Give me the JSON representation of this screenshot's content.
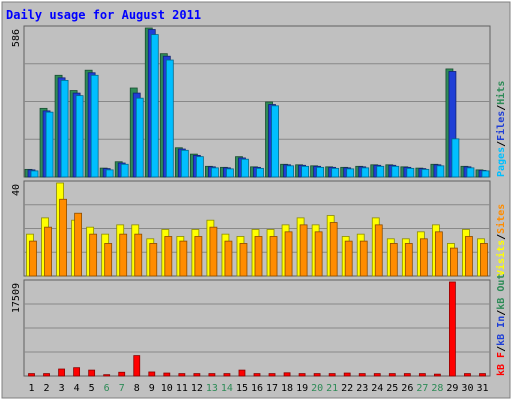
{
  "chart_data": [
    {
      "type": "bar",
      "title": "Daily usage for August 2011",
      "panel": "top",
      "ymax_label": "586",
      "ylim": [
        0,
        586
      ],
      "grid": true,
      "categories": [
        "1",
        "2",
        "3",
        "4",
        "5",
        "6",
        "7",
        "8",
        "9",
        "10",
        "11",
        "12",
        "13",
        "14",
        "15",
        "16",
        "17",
        "18",
        "19",
        "20",
        "21",
        "22",
        "23",
        "24",
        "25",
        "26",
        "27",
        "28",
        "29",
        "30",
        "31"
      ],
      "series": [
        {
          "name": "Hits",
          "color": "#2e8b57",
          "values": [
            30,
            270,
            400,
            340,
            420,
            35,
            60,
            350,
            586,
            485,
            115,
            90,
            42,
            38,
            80,
            40,
            295,
            50,
            48,
            44,
            40,
            38,
            42,
            48,
            48,
            40,
            35,
            50,
            425,
            42,
            28
          ]
        },
        {
          "name": "Files",
          "color": "#1f3fd6",
          "values": [
            28,
            260,
            390,
            330,
            410,
            33,
            55,
            330,
            580,
            475,
            110,
            85,
            40,
            36,
            75,
            38,
            285,
            48,
            46,
            42,
            38,
            36,
            40,
            46,
            46,
            38,
            33,
            48,
            415,
            40,
            26
          ]
        },
        {
          "name": "Pages",
          "color": "#00bfff",
          "values": [
            24,
            255,
            380,
            320,
            400,
            28,
            50,
            310,
            560,
            460,
            105,
            80,
            36,
            32,
            70,
            34,
            280,
            44,
            42,
            38,
            34,
            32,
            36,
            42,
            42,
            34,
            30,
            44,
            150,
            36,
            24
          ]
        }
      ],
      "legend_order": [
        "Pages",
        "Files",
        "Hits"
      ]
    },
    {
      "type": "bar",
      "panel": "middle",
      "ymax_label": "40",
      "ylim": [
        0,
        40
      ],
      "grid": true,
      "series": [
        {
          "name": "Visits",
          "color": "#ffff00",
          "values": [
            18,
            25,
            40,
            24,
            21,
            18,
            22,
            22,
            16,
            20,
            17,
            20,
            24,
            18,
            17,
            20,
            20,
            22,
            25,
            22,
            26,
            17,
            18,
            25,
            16,
            16,
            19,
            22,
            14,
            20,
            16
          ]
        },
        {
          "name": "Sites",
          "color": "#ff8c00",
          "values": [
            15,
            21,
            33,
            27,
            18,
            14,
            18,
            18,
            14,
            17,
            15,
            17,
            21,
            15,
            14,
            17,
            17,
            19,
            22,
            19,
            23,
            15,
            15,
            22,
            14,
            14,
            16,
            19,
            12,
            17,
            14
          ]
        }
      ],
      "legend_order": [
        "Visits",
        "Sites"
      ]
    },
    {
      "type": "bar",
      "panel": "bottom",
      "ymax_label": "17509",
      "ylim": [
        0,
        17509
      ],
      "grid": true,
      "series": [
        {
          "name": "kB F",
          "color": "#ff0000",
          "values": [
            450,
            450,
            1300,
            1550,
            1100,
            250,
            700,
            3800,
            750,
            550,
            450,
            450,
            450,
            450,
            1100,
            450,
            450,
            600,
            450,
            450,
            450,
            550,
            450,
            450,
            450,
            450,
            450,
            350,
            17509,
            450,
            450
          ]
        }
      ],
      "legend_order": [
        "kB F",
        "kB In",
        "kB Out"
      ],
      "legend_colors": {
        "kB F": "#ff0000",
        "kB In": "#1f3fd6",
        "kB Out": "#2e8b57"
      }
    }
  ],
  "weekend_days": [
    "6",
    "7",
    "13",
    "14",
    "20",
    "21",
    "27",
    "28"
  ],
  "colors": {
    "background": "#ffffff",
    "frame": "#c0c0c0",
    "plot_bg": "#c0c0c0",
    "title": "#0000ff",
    "grid": "#888888",
    "weekday_label": "#000000",
    "weekend_label": "#2e8b57",
    "slash": "#000000"
  }
}
